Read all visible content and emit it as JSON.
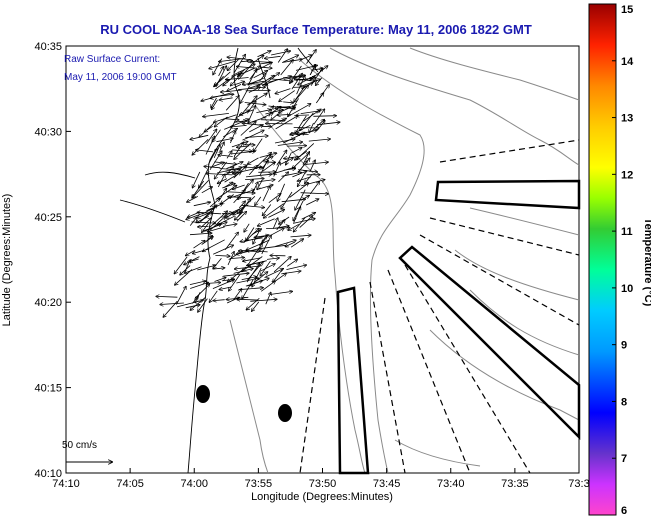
{
  "title": "RU COOL  NOAA-18  Sea Surface Temperature:  May 11, 2006 1822 GMT",
  "legend": {
    "line1": "Raw Surface Current:",
    "line2": "May 11, 2006 19:00 GMT",
    "scale_label": "50 cm/s"
  },
  "axes": {
    "x_label": "Longitude (Degrees:Minutes)",
    "y_label": "Latitude (Degrees:Minutes)",
    "x_ticks": [
      "74:10",
      "74:05",
      "74:00",
      "73:55",
      "73:50",
      "73:45",
      "73:40",
      "73:35",
      "73:3"
    ],
    "y_ticks": [
      "40:35",
      "40:30",
      "40:25",
      "40:20",
      "40:15",
      "40:10"
    ]
  },
  "colorbar": {
    "label": "Temperature (°C)",
    "ticks": [
      "15",
      "14",
      "13",
      "12",
      "11",
      "10",
      "9",
      "8",
      "7",
      "6"
    ],
    "min": 6,
    "max": 15,
    "colors": [
      "#ff33cc",
      "#9933ff",
      "#3333cc",
      "#0066ff",
      "#00ccff",
      "#00ff99",
      "#33cc33",
      "#ccff00",
      "#ffff00",
      "#ffcc00",
      "#ff9900",
      "#ff6600",
      "#ff0000",
      "#cc0000",
      "#990000"
    ]
  },
  "map": {
    "x_range_minutes": [
      -250,
      -211
    ],
    "y_range_minutes": [
      2410,
      2435
    ]
  }
}
